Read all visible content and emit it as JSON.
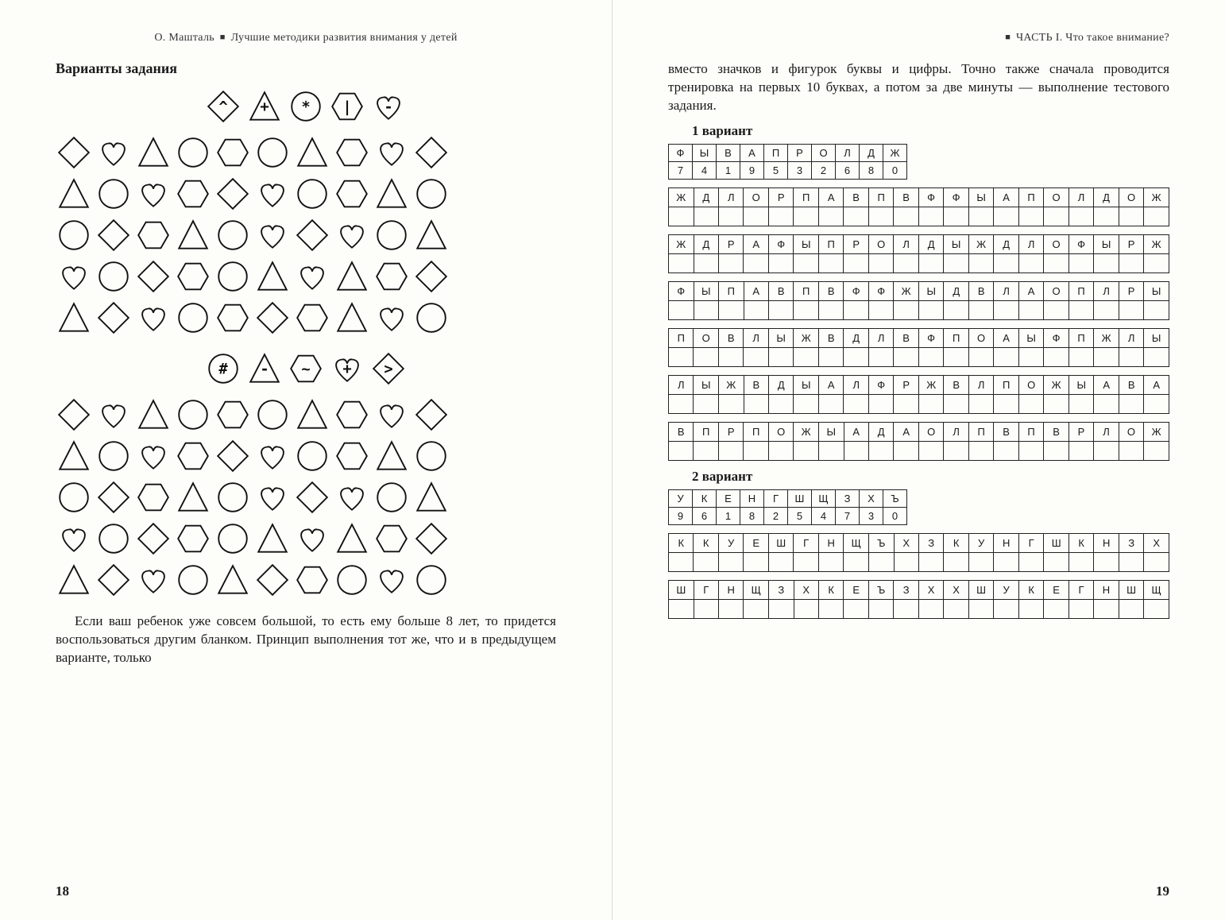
{
  "left": {
    "running_head_author": "О. Машталь",
    "running_head_title": "Лучшие методики развития внимания у детей",
    "section_title": "Варианты задания",
    "key1": [
      {
        "shape": "diamond",
        "sym": "^"
      },
      {
        "shape": "triangle",
        "sym": "+"
      },
      {
        "shape": "circle",
        "sym": "*"
      },
      {
        "shape": "hexagon",
        "sym": "|"
      },
      {
        "shape": "heart",
        "sym": "-"
      }
    ],
    "grid1": [
      [
        "diamond",
        "heart",
        "triangle",
        "circle",
        "hexagon",
        "circle",
        "triangle",
        "hexagon",
        "heart",
        "diamond"
      ],
      [
        "triangle",
        "circle",
        "heart",
        "hexagon",
        "diamond",
        "heart",
        "circle",
        "hexagon",
        "triangle",
        "circle"
      ],
      [
        "circle",
        "diamond",
        "hexagon",
        "triangle",
        "circle",
        "heart",
        "diamond",
        "heart",
        "circle",
        "triangle"
      ],
      [
        "heart",
        "circle",
        "diamond",
        "hexagon",
        "circle",
        "triangle",
        "heart",
        "triangle",
        "hexagon",
        "diamond"
      ],
      [
        "triangle",
        "diamond",
        "heart",
        "circle",
        "hexagon",
        "diamond",
        "hexagon",
        "triangle",
        "heart",
        "circle"
      ]
    ],
    "key2": [
      {
        "shape": "circle",
        "sym": "#"
      },
      {
        "shape": "triangle",
        "sym": "-"
      },
      {
        "shape": "hexagon",
        "sym": "~"
      },
      {
        "shape": "heart",
        "sym": "+"
      },
      {
        "shape": "diamond",
        "sym": ">"
      }
    ],
    "grid2": [
      [
        "diamond",
        "heart",
        "triangle",
        "circle",
        "hexagon",
        "circle",
        "triangle",
        "hexagon",
        "heart",
        "diamond"
      ],
      [
        "triangle",
        "circle",
        "heart",
        "hexagon",
        "diamond",
        "heart",
        "circle",
        "hexagon",
        "triangle",
        "circle"
      ],
      [
        "circle",
        "diamond",
        "hexagon",
        "triangle",
        "circle",
        "heart",
        "diamond",
        "heart",
        "circle",
        "triangle"
      ],
      [
        "heart",
        "circle",
        "diamond",
        "hexagon",
        "circle",
        "triangle",
        "heart",
        "triangle",
        "hexagon",
        "diamond"
      ],
      [
        "triangle",
        "diamond",
        "heart",
        "circle",
        "triangle",
        "diamond",
        "hexagon",
        "circle",
        "heart",
        "circle"
      ]
    ],
    "body_text": "Если ваш ребенок уже совсем большой, то есть ему больше 8 лет, то придется воспользоваться другим бланком. Принцип выполнения тот же, что и в предыдущем варианте, только",
    "page_num": "18",
    "stroke": "#111",
    "stroke_width": 1.8
  },
  "right": {
    "running_head": "ЧАСТЬ I. Что такое внимание?",
    "intro_text": "вместо значков и фигурок буквы и цифры. Точно также сначала проводится тренировка на первых 10 буквах, а потом за две минуты — выполнение тестового задания.",
    "variant1_title": "1 вариант",
    "variant1_key": {
      "letters": [
        "Ф",
        "Ы",
        "В",
        "А",
        "П",
        "Р",
        "О",
        "Л",
        "Д",
        "Ж"
      ],
      "digits": [
        "7",
        "4",
        "1",
        "9",
        "5",
        "3",
        "2",
        "6",
        "8",
        "0"
      ]
    },
    "variant1_rows": [
      [
        "Ж",
        "Д",
        "Л",
        "О",
        "Р",
        "П",
        "А",
        "В",
        "П",
        "В",
        "Ф",
        "Ф",
        "Ы",
        "А",
        "П",
        "О",
        "Л",
        "Д",
        "О",
        "Ж"
      ],
      [
        "Ж",
        "Д",
        "Р",
        "А",
        "Ф",
        "Ы",
        "П",
        "Р",
        "О",
        "Л",
        "Д",
        "Ы",
        "Ж",
        "Д",
        "Л",
        "О",
        "Ф",
        "Ы",
        "Р",
        "Ж"
      ],
      [
        "Ф",
        "Ы",
        "П",
        "А",
        "В",
        "П",
        "В",
        "Ф",
        "Ф",
        "Ж",
        "Ы",
        "Д",
        "В",
        "Л",
        "А",
        "О",
        "П",
        "Л",
        "Р",
        "Ы"
      ],
      [
        "П",
        "О",
        "В",
        "Л",
        "Ы",
        "Ж",
        "В",
        "Д",
        "Л",
        "В",
        "Ф",
        "П",
        "О",
        "А",
        "Ы",
        "Ф",
        "П",
        "Ж",
        "Л",
        "Ы"
      ],
      [
        "Л",
        "Ы",
        "Ж",
        "В",
        "Д",
        "Ы",
        "А",
        "Л",
        "Ф",
        "Р",
        "Ж",
        "В",
        "Л",
        "П",
        "О",
        "Ж",
        "Ы",
        "А",
        "В",
        "А"
      ],
      [
        "В",
        "П",
        "Р",
        "П",
        "О",
        "Ж",
        "Ы",
        "А",
        "Д",
        "А",
        "О",
        "Л",
        "П",
        "В",
        "П",
        "В",
        "Р",
        "Л",
        "О",
        "Ж"
      ]
    ],
    "variant2_title": "2 вариант",
    "variant2_key": {
      "letters": [
        "У",
        "К",
        "Е",
        "Н",
        "Г",
        "Ш",
        "Щ",
        "З",
        "Х",
        "Ъ"
      ],
      "digits": [
        "9",
        "6",
        "1",
        "8",
        "2",
        "5",
        "4",
        "7",
        "3",
        "0"
      ]
    },
    "variant2_rows": [
      [
        "К",
        "К",
        "У",
        "Е",
        "Ш",
        "Г",
        "Н",
        "Щ",
        "Ъ",
        "Х",
        "З",
        "К",
        "У",
        "Н",
        "Г",
        "Ш",
        "К",
        "Н",
        "З",
        "Х"
      ],
      [
        "Ш",
        "Г",
        "Н",
        "Щ",
        "З",
        "Х",
        "К",
        "Е",
        "Ъ",
        "З",
        "Х",
        "Х",
        "Ш",
        "У",
        "К",
        "Е",
        "Г",
        "Н",
        "Ш",
        "Щ"
      ]
    ],
    "page_num": "19"
  }
}
